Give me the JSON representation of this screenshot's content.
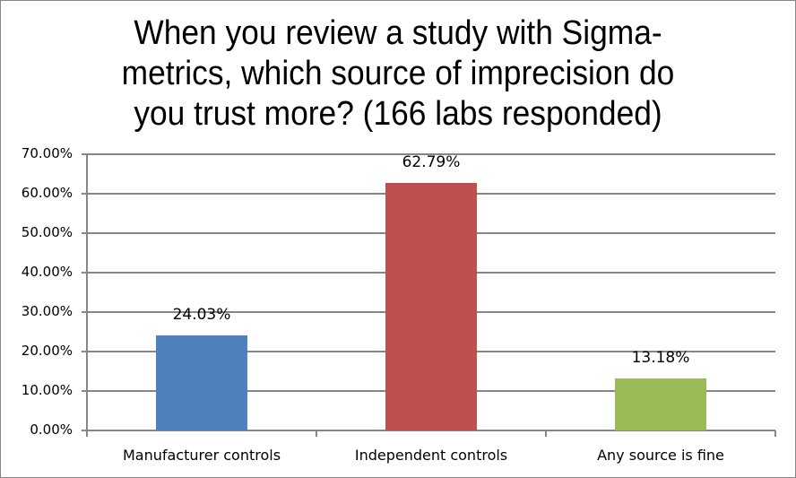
{
  "chart_data": {
    "type": "bar",
    "title": "When you review a study with Sigma-metrics, which source of imprecision do you trust more? (166 labs responded)",
    "title_lines": [
      "When you review a study with Sigma-",
      "metrics, which source of imprecision do",
      "you trust more? (166 labs responded)"
    ],
    "categories": [
      "Manufacturer controls",
      "Independent controls",
      "Any source is fine"
    ],
    "values": [
      24.03,
      62.79,
      13.18
    ],
    "value_labels": [
      "24.03%",
      "62.79%",
      "13.18%"
    ],
    "colors": [
      "#4f81bd",
      "#c0504d",
      "#9bbb59"
    ],
    "xlabel": "",
    "ylabel": "",
    "ylim": [
      0,
      70
    ],
    "yticks": [
      "0.00%",
      "10.00%",
      "20.00%",
      "30.00%",
      "40.00%",
      "50.00%",
      "60.00%",
      "70.00%"
    ],
    "grid": true,
    "legend": null
  }
}
